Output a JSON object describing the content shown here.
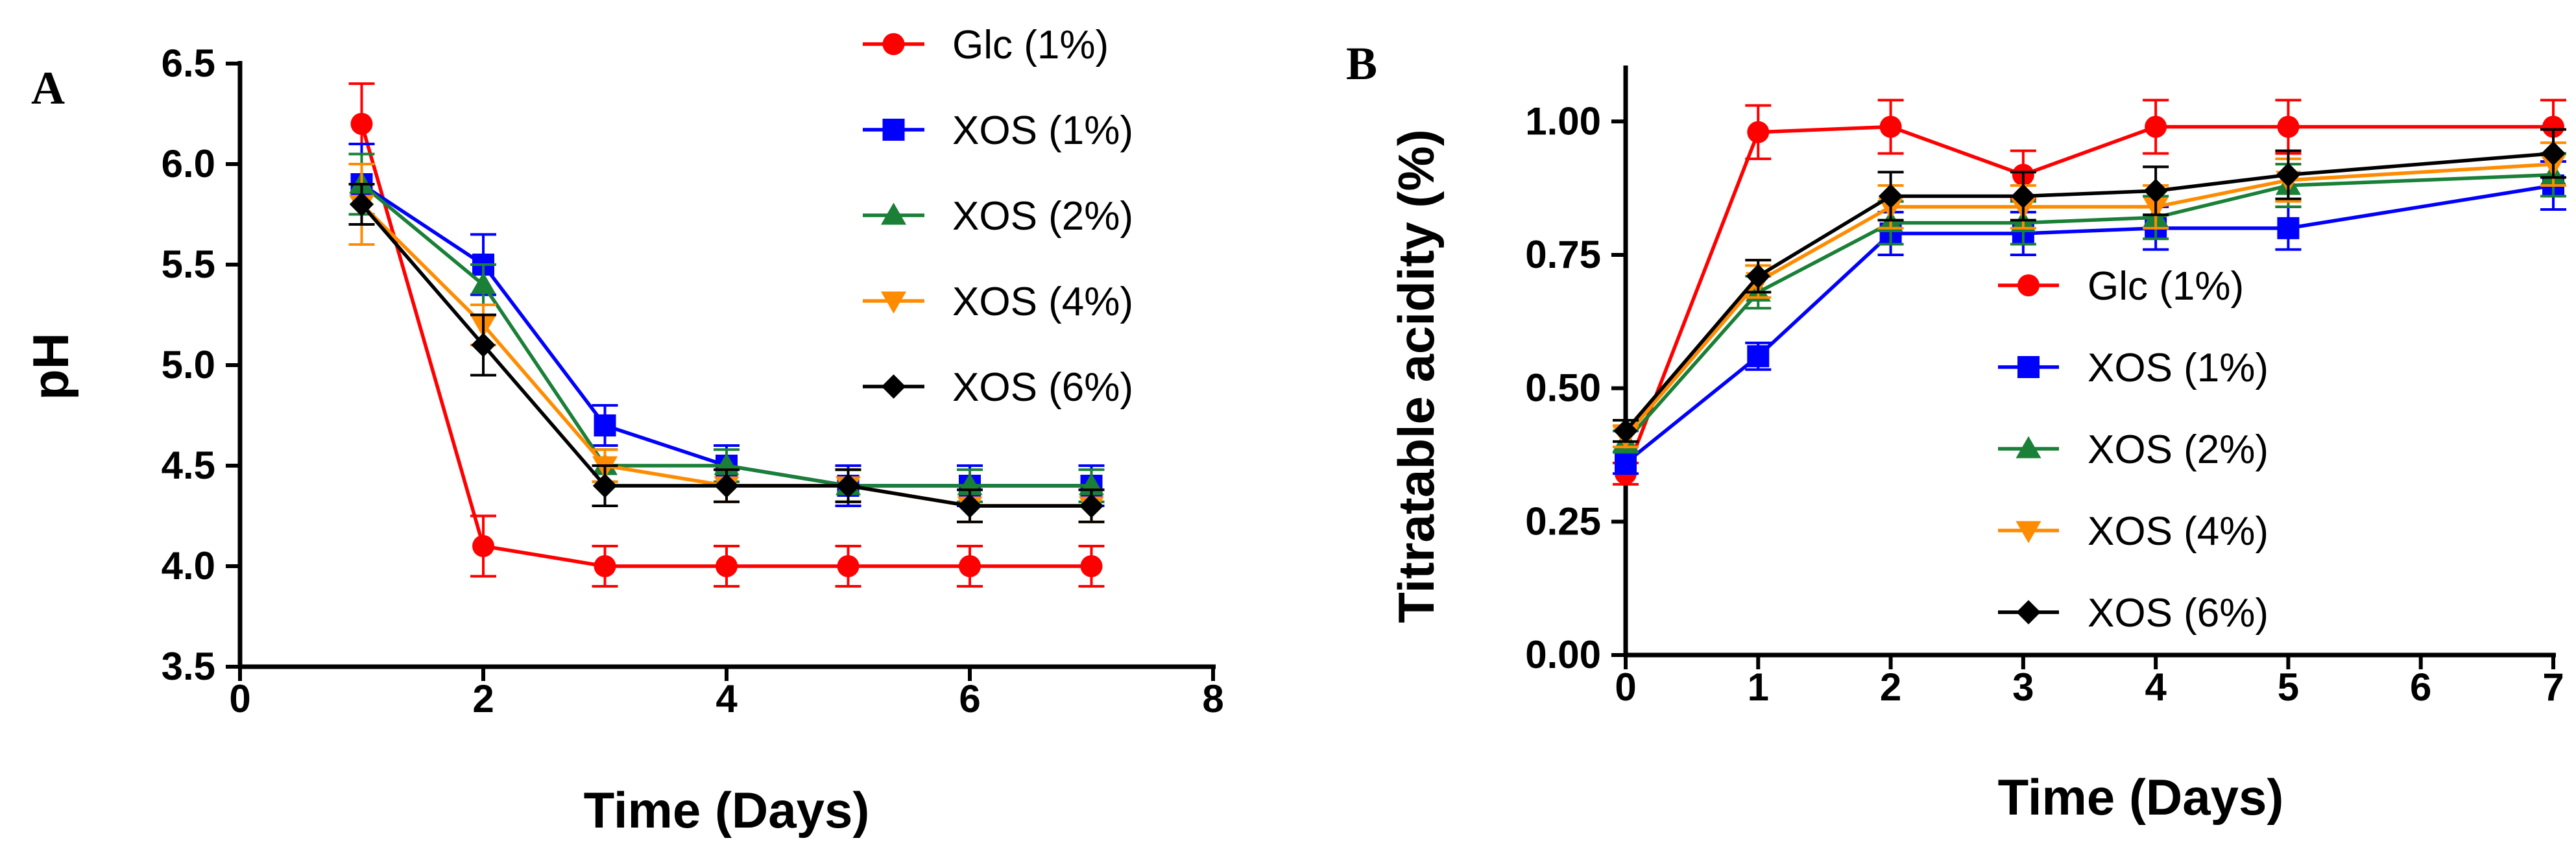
{
  "chart_data": [
    {
      "type": "line",
      "panel_label": "A",
      "title": "",
      "xlabel": "Time (Days)",
      "ylabel": "pH",
      "xlim": [
        0,
        8
      ],
      "ylim": [
        3.5,
        6.5
      ],
      "xticks": [
        "0",
        "2",
        "4",
        "6",
        "8"
      ],
      "yticks": [
        "3.5",
        "4.0",
        "4.5",
        "5.0",
        "5.5",
        "6.0",
        "6.5"
      ],
      "legend_position": "right",
      "series": [
        {
          "name": "Glc (1%)",
          "color": "#ff0000",
          "marker": "circle",
          "x": [
            1,
            2,
            3,
            4,
            5,
            6,
            7
          ],
          "values": [
            6.2,
            4.1,
            4.0,
            4.0,
            4.0,
            4.0,
            4.0
          ],
          "errors": [
            0.2,
            0.15,
            0.1,
            0.1,
            0.1,
            0.1,
            0.1
          ]
        },
        {
          "name": "XOS (1%)",
          "color": "#0000ff",
          "marker": "square",
          "x": [
            1,
            2,
            3,
            4,
            5,
            6,
            7
          ],
          "values": [
            5.9,
            5.5,
            4.7,
            4.5,
            4.4,
            4.4,
            4.4
          ],
          "errors": [
            0.2,
            0.15,
            0.1,
            0.1,
            0.1,
            0.1,
            0.1
          ]
        },
        {
          "name": "XOS (2%)",
          "color": "#1a7f37",
          "marker": "triangle-up",
          "x": [
            1,
            2,
            3,
            4,
            5,
            6,
            7
          ],
          "values": [
            5.9,
            5.4,
            4.5,
            4.5,
            4.4,
            4.4,
            4.4
          ],
          "errors": [
            0.15,
            0.1,
            0.08,
            0.08,
            0.08,
            0.08,
            0.08
          ]
        },
        {
          "name": "XOS (4%)",
          "color": "#ff8c00",
          "marker": "triangle-down",
          "x": [
            1,
            2,
            3,
            4,
            5,
            6,
            7
          ],
          "values": [
            5.8,
            5.2,
            4.5,
            4.4,
            4.4,
            4.3,
            4.3
          ],
          "errors": [
            0.2,
            0.1,
            0.08,
            0.08,
            0.08,
            0.08,
            0.08
          ]
        },
        {
          "name": "XOS (6%)",
          "color": "#000000",
          "marker": "diamond",
          "x": [
            1,
            2,
            3,
            4,
            5,
            6,
            7
          ],
          "values": [
            5.8,
            5.1,
            4.4,
            4.4,
            4.4,
            4.3,
            4.3
          ],
          "errors": [
            0.1,
            0.15,
            0.1,
            0.08,
            0.08,
            0.08,
            0.08
          ]
        }
      ]
    },
    {
      "type": "line",
      "panel_label": "B",
      "title": "",
      "xlabel": "Time (Days)",
      "ylabel": "Titratable acidity (%)",
      "xlim": [
        0,
        7
      ],
      "ylim": [
        0,
        1.1
      ],
      "xticks": [
        "0",
        "1",
        "2",
        "3",
        "4",
        "5",
        "6",
        "7"
      ],
      "yticks": [
        "0.00",
        "0.25",
        "0.50",
        "0.75",
        "1.00"
      ],
      "legend_position": "bottom-right",
      "series": [
        {
          "name": "Glc (1%)",
          "color": "#ff0000",
          "marker": "circle",
          "x": [
            0,
            1,
            2,
            3,
            4,
            5,
            7
          ],
          "values": [
            0.34,
            0.98,
            0.99,
            0.9,
            0.99,
            0.99,
            0.99
          ],
          "errors": [
            0.02,
            0.05,
            0.05,
            0.045,
            0.05,
            0.05,
            0.05
          ]
        },
        {
          "name": "XOS (1%)",
          "color": "#0000ff",
          "marker": "square",
          "x": [
            0,
            1,
            2,
            3,
            4,
            5,
            7
          ],
          "values": [
            0.36,
            0.56,
            0.79,
            0.79,
            0.8,
            0.8,
            0.88
          ],
          "errors": [
            0.02,
            0.025,
            0.04,
            0.04,
            0.04,
            0.04,
            0.045
          ]
        },
        {
          "name": "XOS (2%)",
          "color": "#1a7f37",
          "marker": "triangle-up",
          "x": [
            0,
            1,
            2,
            3,
            4,
            5,
            7
          ],
          "values": [
            0.4,
            0.68,
            0.81,
            0.81,
            0.82,
            0.88,
            0.9
          ],
          "errors": [
            0.02,
            0.03,
            0.04,
            0.04,
            0.04,
            0.04,
            0.04
          ]
        },
        {
          "name": "XOS (4%)",
          "color": "#ff8c00",
          "marker": "triangle-down",
          "x": [
            0,
            1,
            2,
            3,
            4,
            5,
            7
          ],
          "values": [
            0.41,
            0.7,
            0.84,
            0.84,
            0.84,
            0.89,
            0.92
          ],
          "errors": [
            0.02,
            0.03,
            0.04,
            0.04,
            0.04,
            0.04,
            0.04
          ]
        },
        {
          "name": "XOS (6%)",
          "color": "#000000",
          "marker": "diamond",
          "x": [
            0,
            1,
            2,
            3,
            4,
            5,
            7
          ],
          "values": [
            0.42,
            0.71,
            0.86,
            0.86,
            0.87,
            0.9,
            0.94
          ],
          "errors": [
            0.02,
            0.03,
            0.045,
            0.045,
            0.045,
            0.045,
            0.045
          ]
        }
      ]
    }
  ]
}
